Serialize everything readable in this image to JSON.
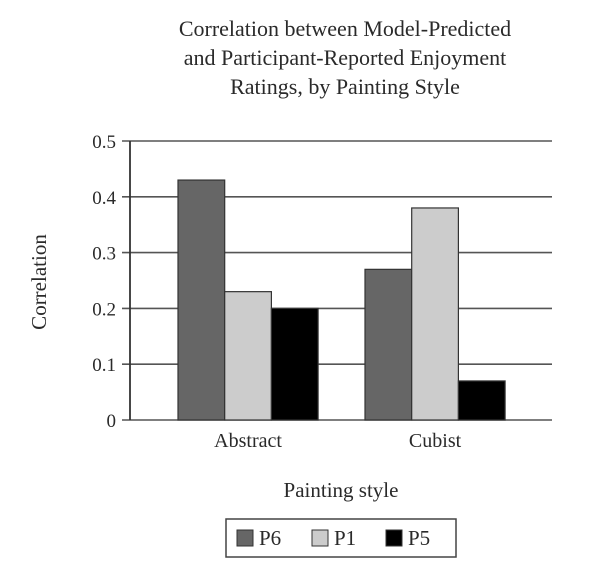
{
  "chart_data": {
    "type": "bar",
    "title": "Correlation between Model-Predicted and Participant-Reported Enjoyment Ratings, by Painting Style",
    "title_lines": [
      "Correlation between Model-Predicted",
      "and Participant-Reported Enjoyment",
      "Ratings, by Painting Style"
    ],
    "xlabel": "Painting style",
    "ylabel": "Correlation",
    "categories": [
      "Abstract",
      "Cubist"
    ],
    "series": [
      {
        "name": "P6",
        "color": "#666666",
        "values": [
          0.43,
          0.27
        ]
      },
      {
        "name": "P1",
        "color": "#cccccc",
        "values": [
          0.23,
          0.38
        ]
      },
      {
        "name": "P5",
        "color": "#000000",
        "values": [
          0.2,
          0.07
        ]
      }
    ],
    "ylim": [
      0,
      0.5
    ],
    "yticks": [
      "0",
      "0.1",
      "0.2",
      "0.3",
      "0.4",
      "0.5"
    ],
    "grid": true,
    "legend_position": "bottom"
  }
}
